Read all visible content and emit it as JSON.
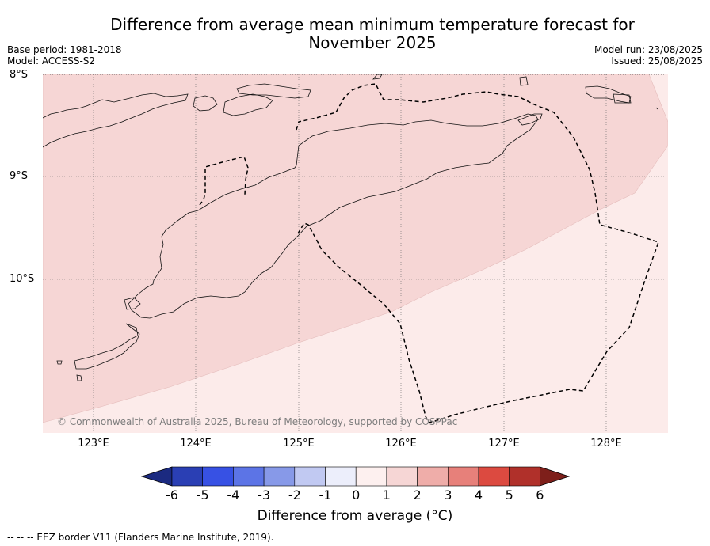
{
  "title": {
    "line1": "Difference from average mean minimum temperature forecast for",
    "line2": "November 2025"
  },
  "meta": {
    "base_period": "Base period: 1981-2018",
    "model": "Model: ACCESS-S2",
    "model_run": "Model run: 23/08/2025",
    "issued": "Issued: 25/08/2025"
  },
  "map": {
    "lat_labels": [
      "8°S",
      "9°S",
      "10°S"
    ],
    "lon_labels": [
      "123°E",
      "124°E",
      "125°E",
      "126°E",
      "127°E",
      "128°E"
    ],
    "copyright": "© Commonwealth of Australia 2025, Bureau of Meteorology, supported by COSPPac",
    "fill_colors": {
      "band_1_2": "#f6d6d5",
      "band_0_1": "#fcebea"
    }
  },
  "colorbar": {
    "ticks": [
      "-6",
      "-5",
      "-4",
      "-3",
      "-2",
      "-1",
      "0",
      "1",
      "2",
      "3",
      "4",
      "5",
      "6"
    ],
    "colors": [
      "#1b2a80",
      "#2a3fb4",
      "#3751e4",
      "#5c74e6",
      "#8799e8",
      "#c1c9f2",
      "#eceefb",
      "#fdf0ef",
      "#f6d6d5",
      "#efada9",
      "#e7807a",
      "#dc4a40",
      "#b0302a",
      "#7e1f1a"
    ],
    "label": "Difference from average (°C)"
  },
  "footer": "--  --  -- EEZ border V11 (Flanders Marine Institute, 2019)."
}
